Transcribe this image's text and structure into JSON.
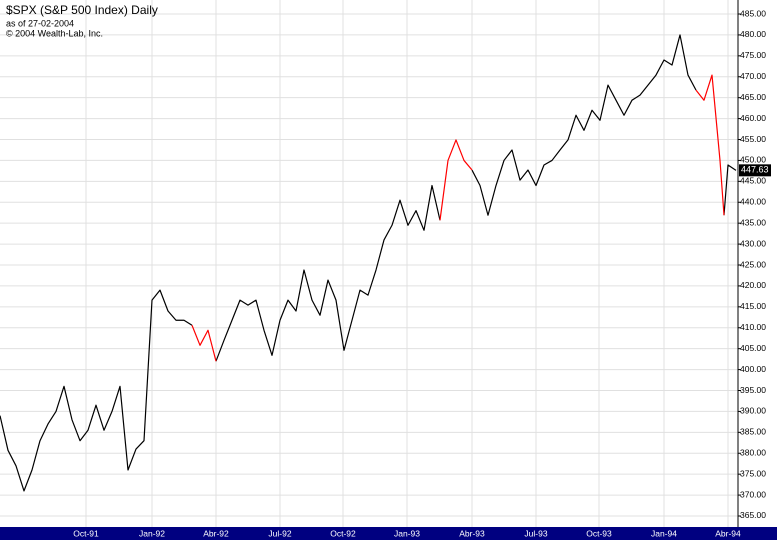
{
  "chart_data": {
    "type": "line",
    "title": "$SPX (S&P 500 Index) Daily",
    "subtitle": "as of 27-02-2004",
    "copyright": "© 2004 Wealth-Lab, Inc.",
    "x": [
      0,
      8,
      16,
      24,
      32,
      40,
      48,
      56,
      64,
      72,
      80,
      88,
      96,
      104,
      112,
      120,
      128,
      136,
      144,
      152,
      160,
      168,
      176,
      184,
      192,
      200,
      208,
      216,
      224,
      232,
      240,
      248,
      256,
      264,
      272,
      280,
      288,
      296,
      304,
      312,
      320,
      328,
      336,
      344,
      352,
      360,
      368,
      376,
      384,
      392,
      400,
      408,
      416,
      424,
      432,
      440,
      448,
      456,
      464,
      472,
      480,
      488,
      496,
      504,
      512,
      520,
      528,
      536,
      544,
      552,
      560,
      568,
      576,
      584,
      592,
      600,
      608,
      616,
      624,
      632,
      640,
      648,
      656,
      664,
      672,
      680,
      688,
      696,
      704,
      712,
      720,
      724,
      728,
      736
    ],
    "series": [
      {
        "color": "#000000",
        "values": [
          389,
          380.7,
          377,
          371,
          376,
          383,
          387,
          390,
          396,
          388,
          383,
          385.5,
          391.5,
          385.5,
          390,
          396,
          376,
          381,
          383,
          416.6,
          419,
          414,
          411.8,
          411.8,
          410.6,
          null,
          null,
          402,
          407,
          411.8,
          416.6,
          415.4,
          416.6,
          409.4,
          403.4,
          411.8,
          416.6,
          414,
          423.8,
          416.6,
          413,
          421.4,
          416.6,
          404.6,
          411.8,
          419,
          417.8,
          423.8,
          431,
          434.5,
          440.5,
          434.5,
          438,
          433.3,
          444,
          435.7,
          null,
          null,
          null,
          447.7,
          444,
          436.9,
          444,
          450,
          452.5,
          445.3,
          447.7,
          444,
          448.9,
          450,
          452.5,
          454.9,
          460.8,
          457.2,
          462,
          459.6,
          468,
          464.4,
          460.8,
          464.4,
          465.6,
          468,
          470.4,
          474,
          472.8,
          480,
          470.4,
          466.8,
          null,
          null,
          null,
          436.9,
          448.9,
          447.63
        ]
      },
      {
        "color": "#ff0000",
        "values": [
          null,
          null,
          null,
          null,
          null,
          null,
          null,
          null,
          null,
          null,
          null,
          null,
          null,
          null,
          null,
          null,
          null,
          null,
          null,
          null,
          null,
          null,
          null,
          null,
          410.6,
          405.8,
          409.4,
          402,
          null,
          null,
          null,
          null,
          null,
          null,
          null,
          null,
          null,
          null,
          null,
          null,
          null,
          null,
          null,
          null,
          null,
          null,
          null,
          null,
          null,
          null,
          null,
          null,
          null,
          null,
          null,
          435.7,
          450,
          454.9,
          450,
          447.7,
          null,
          null,
          null,
          null,
          null,
          null,
          null,
          null,
          null,
          null,
          null,
          null,
          null,
          null,
          null,
          null,
          null,
          null,
          null,
          null,
          null,
          null,
          null,
          null,
          null,
          null,
          null,
          466.8,
          464.4,
          470.4,
          450,
          436.9,
          null,
          null
        ]
      }
    ],
    "xlim": [
      0,
      738
    ],
    "xticks": [
      {
        "value": 86,
        "label": "Oct-91"
      },
      {
        "value": 152,
        "label": "Jan-92"
      },
      {
        "value": 216,
        "label": "Abr-92"
      },
      {
        "value": 280,
        "label": "Jul-92"
      },
      {
        "value": 343,
        "label": "Oct-92"
      },
      {
        "value": 407,
        "label": "Jan-93"
      },
      {
        "value": 472,
        "label": "Abr-93"
      },
      {
        "value": 536,
        "label": "Jul-93"
      },
      {
        "value": 599,
        "label": "Oct-93"
      },
      {
        "value": 664,
        "label": "Jan-94"
      },
      {
        "value": 728,
        "label": "Abr-94"
      }
    ],
    "ylim": [
      362.37,
      488.35
    ],
    "yticks": [
      {
        "value": 365,
        "label": "365.00"
      },
      {
        "value": 370,
        "label": "370.00"
      },
      {
        "value": 375,
        "label": "375.00"
      },
      {
        "value": 380,
        "label": "380.00"
      },
      {
        "value": 385,
        "label": "385.00"
      },
      {
        "value": 390,
        "label": "390.00"
      },
      {
        "value": 395,
        "label": "395.00"
      },
      {
        "value": 400,
        "label": "400.00"
      },
      {
        "value": 405,
        "label": "405.00"
      },
      {
        "value": 410,
        "label": "410.00"
      },
      {
        "value": 415,
        "label": "415.00"
      },
      {
        "value": 420,
        "label": "420.00"
      },
      {
        "value": 425,
        "label": "425.00"
      },
      {
        "value": 430,
        "label": "430.00"
      },
      {
        "value": 435,
        "label": "435.00"
      },
      {
        "value": 440,
        "label": "440.00"
      },
      {
        "value": 445,
        "label": "445.00"
      },
      {
        "value": 450,
        "label": "450.00"
      },
      {
        "value": 455,
        "label": "455.00"
      },
      {
        "value": 460,
        "label": "460.00"
      },
      {
        "value": 465,
        "label": "465.00"
      },
      {
        "value": 470,
        "label": "470.00"
      },
      {
        "value": 475,
        "label": "475.00"
      },
      {
        "value": 480,
        "label": "480.00"
      },
      {
        "value": 485,
        "label": "485.00"
      }
    ],
    "grid": true
  }
}
